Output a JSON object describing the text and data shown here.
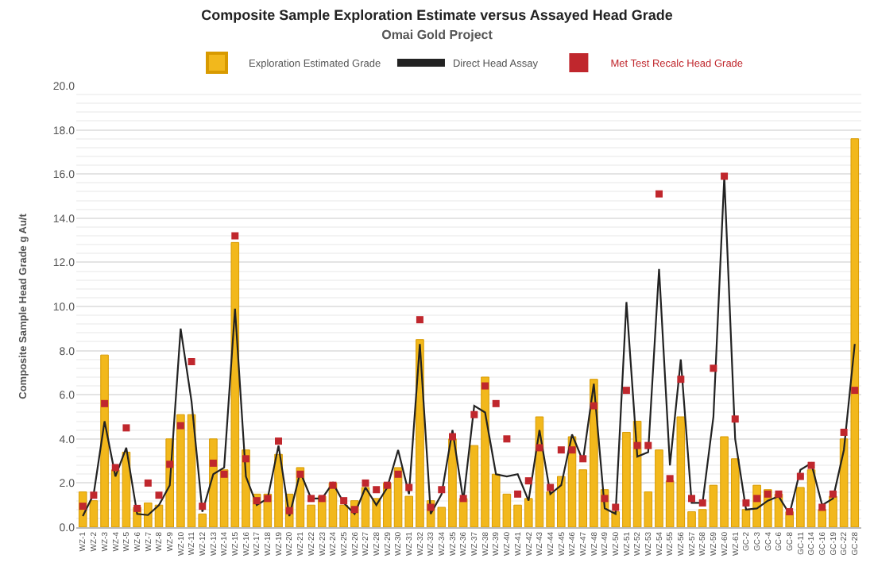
{
  "chart_data": {
    "type": "bar",
    "title": "Composite Sample Exploration Estimate versus Assayed Head Grade",
    "subtitle": "Omai Gold Project",
    "ylabel": "Composite Sample Head Grade g Au/t",
    "categories": [
      "WZ-1",
      "WZ-2",
      "WZ-3",
      "WZ-4",
      "WZ-5",
      "WZ-6",
      "WZ-7",
      "WZ-8",
      "WZ-9",
      "WZ-10",
      "WZ-11",
      "WZ-12",
      "WZ-13",
      "WZ-14",
      "WZ-15",
      "WZ-16",
      "WZ-17",
      "WZ-18",
      "WZ-19",
      "WZ-20",
      "WZ-21",
      "WZ-22",
      "WZ-23",
      "WZ-24",
      "WZ-25",
      "WZ-26",
      "WZ-27",
      "WZ-28",
      "WZ-29",
      "WZ-30",
      "WZ-31",
      "WZ-32",
      "WZ-33",
      "WZ-34",
      "WZ-35",
      "WZ-36",
      "WZ-37",
      "WZ-38",
      "WZ-39",
      "WZ-40",
      "WZ-41",
      "WZ-42",
      "WZ-43",
      "WZ-44",
      "WZ-45",
      "WZ-46",
      "WZ-47",
      "WZ-48",
      "WZ-49",
      "WZ-50",
      "WZ-51",
      "WZ-52",
      "WZ-53",
      "WZ-54",
      "WZ-55",
      "WZ-56",
      "WZ-57",
      "WZ-58",
      "WZ-59",
      "WZ-60",
      "WZ-61",
      "GC-2",
      "GC-3",
      "GC-4",
      "GC-6",
      "GC-8",
      "GC-11",
      "GC-14",
      "GC-16",
      "GC-19",
      "GC-22",
      "GC-28"
    ],
    "series": [
      {
        "name": "Exploration Estimated Grade",
        "color": "#f2b81c",
        "values": [
          1.6,
          1.2,
          7.8,
          2.6,
          3.4,
          0.9,
          1.1,
          1.0,
          4.0,
          5.1,
          5.1,
          0.6,
          4.0,
          2.6,
          12.9,
          3.5,
          1.5,
          1.5,
          3.3,
          1.5,
          2.7,
          1.0,
          1.4,
          2.0,
          1.0,
          1.2,
          1.8,
          1.3,
          2.0,
          2.7,
          1.4,
          8.5,
          1.2,
          0.9,
          4.0,
          1.3,
          3.7,
          6.8,
          2.4,
          1.5,
          1.0,
          1.3,
          5.0,
          1.6,
          2.3,
          4.1,
          2.6,
          6.7,
          1.7,
          0.7,
          4.3,
          4.8,
          1.6,
          3.5,
          2.1,
          5.0,
          0.7,
          0.8,
          1.9,
          4.1,
          3.1,
          0.8,
          1.9,
          1.7,
          1.5,
          0.7,
          1.8,
          2.6,
          0.8,
          1.4,
          4.0,
          17.6
        ]
      },
      {
        "name": "Direct Head Assay",
        "type": "line",
        "color": "#222222",
        "values": [
          0.5,
          1.5,
          4.8,
          2.3,
          3.6,
          0.6,
          0.55,
          1.0,
          1.9,
          9.0,
          5.7,
          0.7,
          2.4,
          2.7,
          9.9,
          2.3,
          1.0,
          1.3,
          3.7,
          0.5,
          2.5,
          1.3,
          1.3,
          2.0,
          1.1,
          0.6,
          1.8,
          1.0,
          1.8,
          3.5,
          1.5,
          8.3,
          0.6,
          1.5,
          4.4,
          1.2,
          5.5,
          5.2,
          2.4,
          2.3,
          2.4,
          1.2,
          4.4,
          1.5,
          1.9,
          4.2,
          3.0,
          6.5,
          0.85,
          0.6,
          10.2,
          3.2,
          3.4,
          11.7,
          2.8,
          7.6,
          1.1,
          1.1,
          5.0,
          15.9,
          4.0,
          0.8,
          0.85,
          1.2,
          1.4,
          0.6,
          2.6,
          2.9,
          1.0,
          1.3,
          3.5,
          8.3
        ]
      },
      {
        "name": "Met Test Recalc Head Grade",
        "type": "scatter",
        "marker": "square",
        "color": "#c0272d",
        "values": [
          0.95,
          1.45,
          5.6,
          2.7,
          4.5,
          0.85,
          2.0,
          1.45,
          2.85,
          4.6,
          7.5,
          0.95,
          2.9,
          2.4,
          13.2,
          3.1,
          1.2,
          1.3,
          3.9,
          0.75,
          2.4,
          1.3,
          1.3,
          1.9,
          1.2,
          0.8,
          2.0,
          1.7,
          1.9,
          2.4,
          1.8,
          9.4,
          0.9,
          1.7,
          4.1,
          1.3,
          5.1,
          6.4,
          5.6,
          4.0,
          1.5,
          2.1,
          3.6,
          1.8,
          3.5,
          3.5,
          3.1,
          5.5,
          1.3,
          0.9,
          6.2,
          3.7,
          3.7,
          15.1,
          2.2,
          6.7,
          1.3,
          1.1,
          7.2,
          15.9,
          4.9,
          1.1,
          1.3,
          1.5,
          1.5,
          0.7,
          2.3,
          2.8,
          0.9,
          1.5,
          4.3,
          6.2
        ]
      }
    ],
    "ylim": [
      0,
      20
    ],
    "yticks": [
      {
        "value": 0,
        "label": "0.0"
      },
      {
        "value": 2,
        "label": "2.0"
      },
      {
        "value": 4,
        "label": "4.0"
      },
      {
        "value": 6,
        "label": "6.0"
      },
      {
        "value": 8,
        "label": "8.0"
      },
      {
        "value": 10,
        "label": "10.0"
      },
      {
        "value": 12,
        "label": "12.0"
      },
      {
        "value": 14,
        "label": "14.0"
      },
      {
        "value": 16,
        "label": "16.0"
      },
      {
        "value": 18,
        "label": "18.0"
      },
      {
        "value": 20,
        "label": "20.0"
      }
    ],
    "grid": "y",
    "legend": "top"
  }
}
